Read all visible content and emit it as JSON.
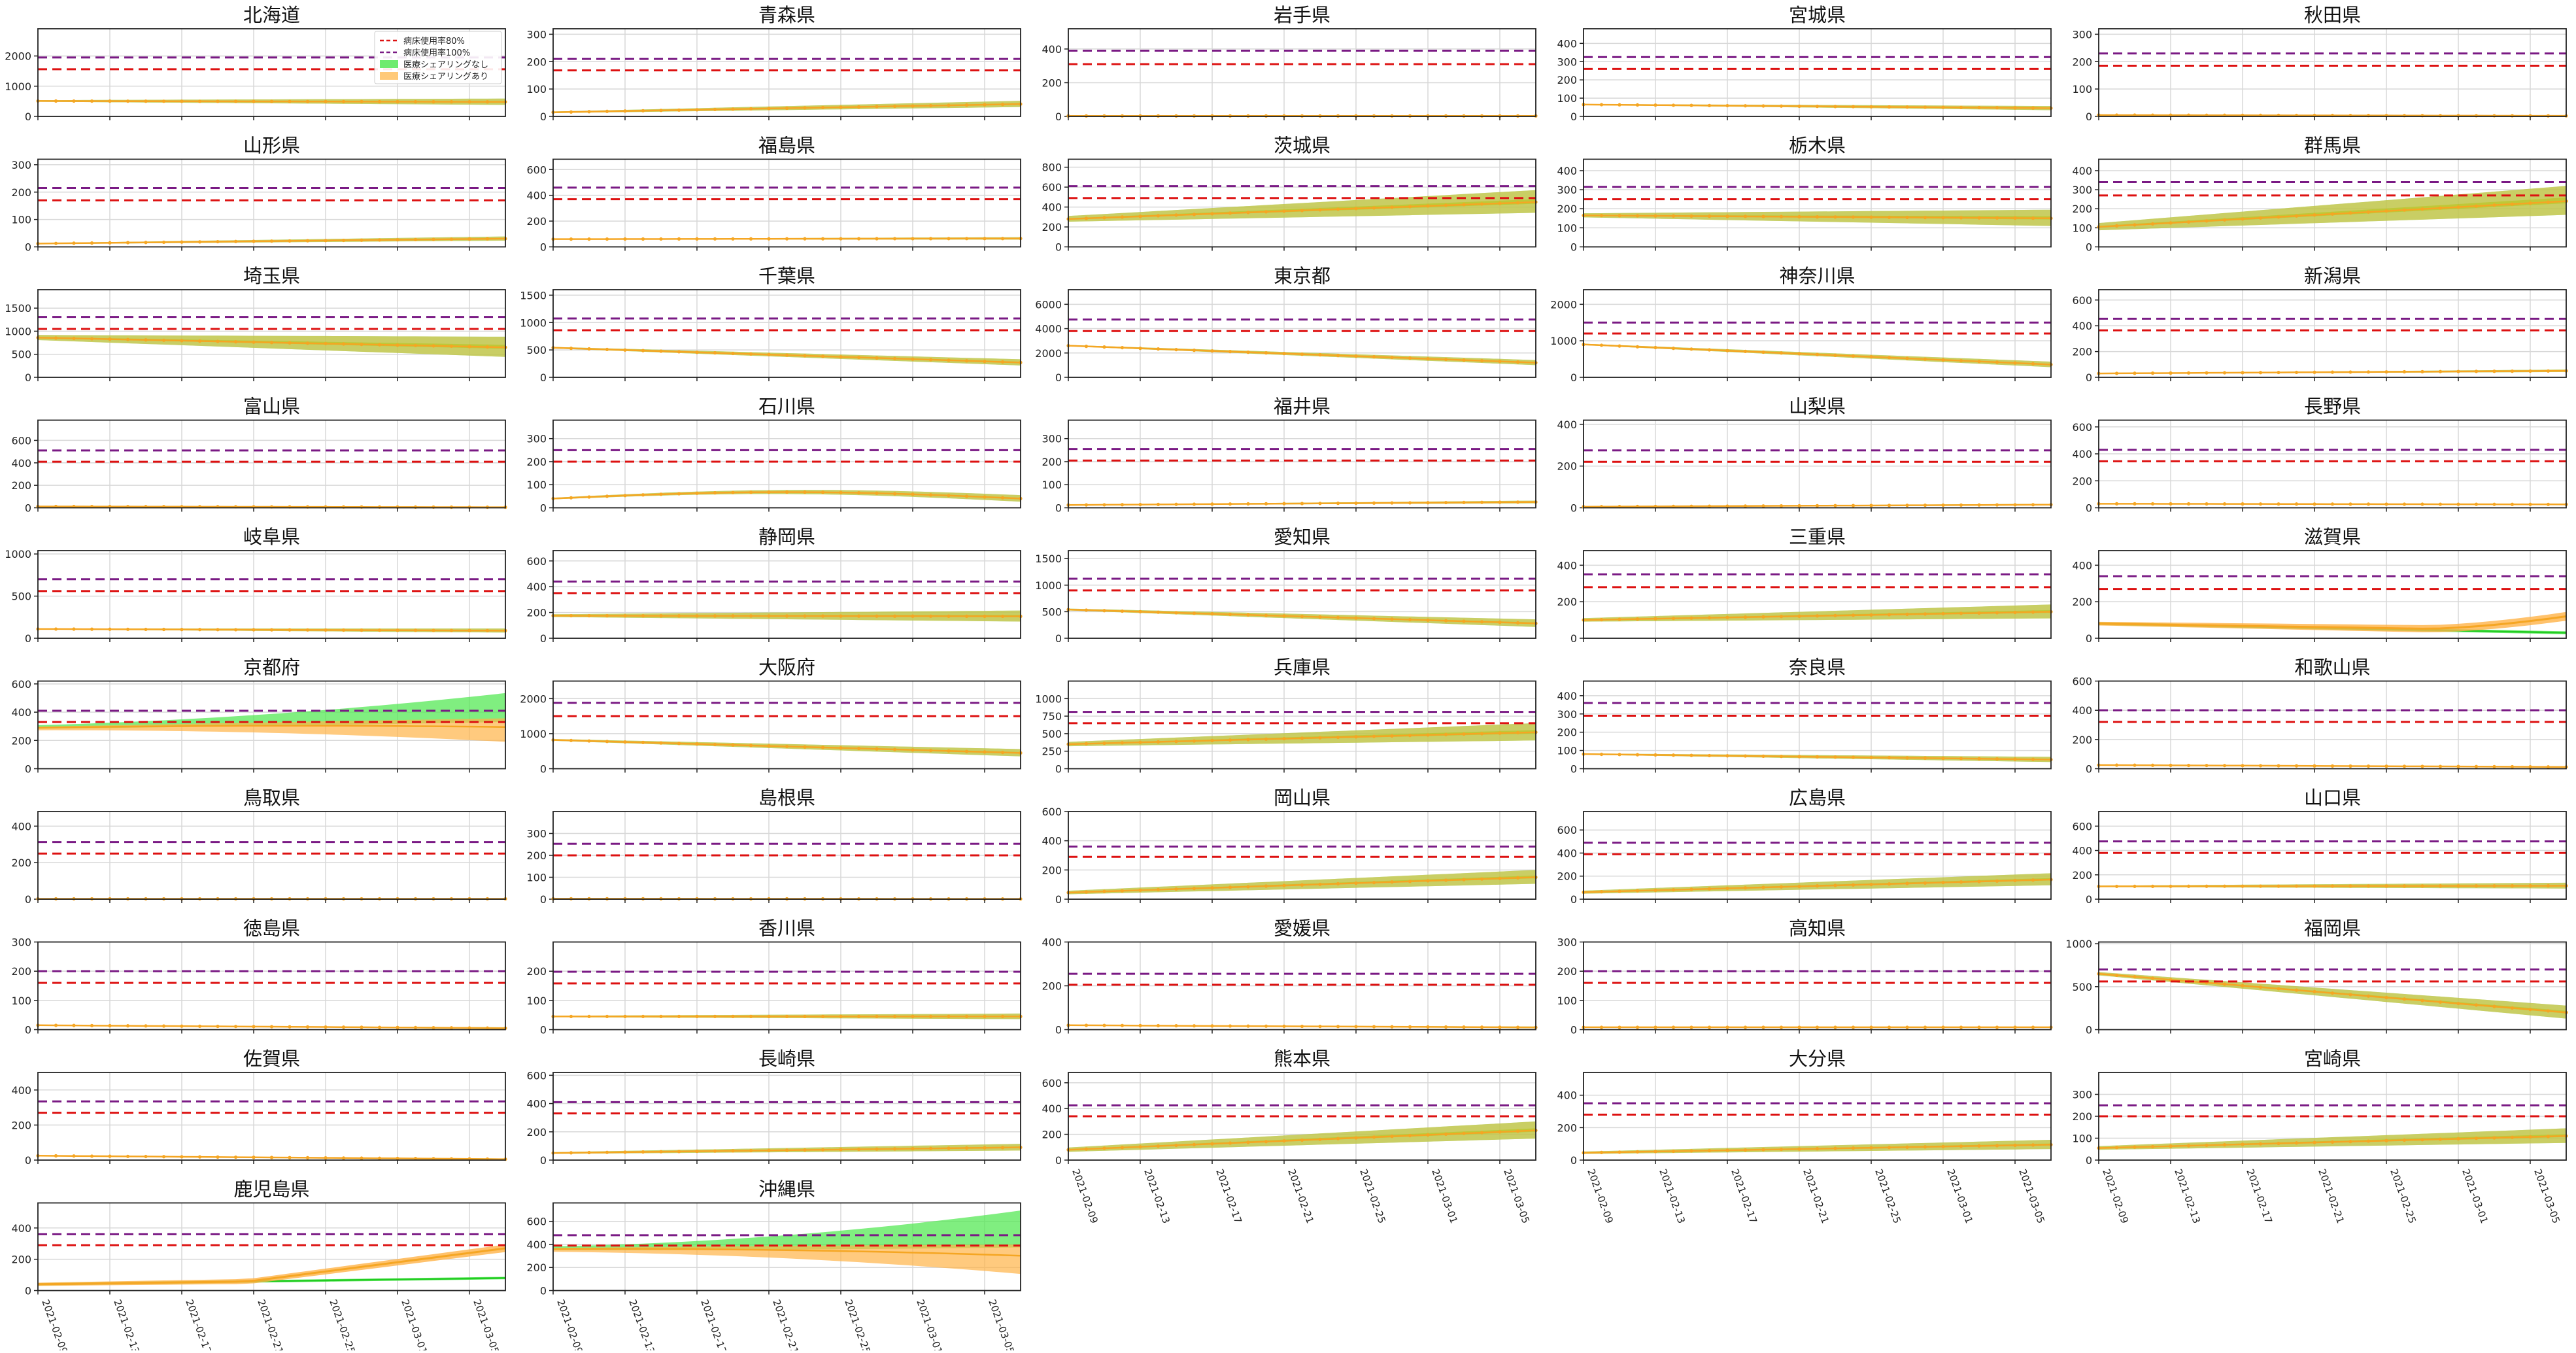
{
  "figure": {
    "legend": {
      "items": [
        {
          "label": "病床使用率80%",
          "color": "#dd1111",
          "style": "dashed"
        },
        {
          "label": "病床使用率100%",
          "color": "#7a1a84",
          "style": "dashed"
        },
        {
          "label": "医療シェアリングなし",
          "color": "#55e855",
          "style": "band"
        },
        {
          "label": "医療シェアリングあり",
          "color": "#ffc060",
          "style": "band"
        }
      ]
    },
    "x_tick_labels": [
      "2021-02-09",
      "2021-02-13",
      "2021-02-17",
      "2021-02-21",
      "2021-02-25",
      "2021-03-01",
      "2021-03-05"
    ],
    "colors": {
      "line80": "#dd1111",
      "line100": "#7a1a84",
      "noShare": "#55e855",
      "share": "#ffb347",
      "shareLine": "#f5a623",
      "overlap": "#b8c41a",
      "grid": "#d8d8d8"
    }
  },
  "chart_data": [
    {
      "type": "line",
      "title": "北海道",
      "ylim": [
        0,
        2900
      ],
      "yticks": [
        0,
        1000,
        2000
      ],
      "cap80": 1560,
      "cap100": 1950,
      "start": 510,
      "end": 480,
      "spread": 110,
      "legend": "top-right"
    },
    {
      "type": "line",
      "title": "青森県",
      "ylim": [
        0,
        320
      ],
      "yticks": [
        0,
        100,
        200,
        300
      ],
      "cap80": 168,
      "cap100": 210,
      "start": 15,
      "end": 45,
      "spread": 12
    },
    {
      "type": "line",
      "title": "岩手県",
      "ylim": [
        0,
        520
      ],
      "yticks": [
        0,
        200,
        400
      ],
      "cap80": 310,
      "cap100": 390,
      "start": 3,
      "end": 3,
      "spread": 2
    },
    {
      "type": "line",
      "title": "宮城県",
      "ylim": [
        0,
        480
      ],
      "yticks": [
        0,
        100,
        200,
        300,
        400
      ],
      "cap80": 260,
      "cap100": 325,
      "start": 65,
      "end": 45,
      "spread": 12
    },
    {
      "type": "line",
      "title": "秋田県",
      "ylim": [
        0,
        320
      ],
      "yticks": [
        0,
        100,
        200,
        300
      ],
      "cap80": 185,
      "cap100": 230,
      "start": 5,
      "end": 2,
      "spread": 2
    },
    {
      "type": "line",
      "title": "山形県",
      "ylim": [
        0,
        320
      ],
      "yticks": [
        0,
        100,
        200,
        300
      ],
      "cap80": 170,
      "cap100": 215,
      "start": 12,
      "end": 30,
      "spread": 8
    },
    {
      "type": "line",
      "title": "福島県",
      "ylim": [
        0,
        680
      ],
      "yticks": [
        0,
        200,
        400,
        600
      ],
      "cap80": 370,
      "cap100": 460,
      "start": 60,
      "end": 65,
      "spread": 10
    },
    {
      "type": "line",
      "title": "茨城県",
      "ylim": [
        0,
        880
      ],
      "yticks": [
        0,
        200,
        400,
        600,
        800
      ],
      "cap80": 490,
      "cap100": 610,
      "start": 280,
      "end": 450,
      "spread": 120
    },
    {
      "type": "line",
      "title": "栃木県",
      "ylim": [
        0,
        460
      ],
      "yticks": [
        0,
        100,
        200,
        300,
        400
      ],
      "cap80": 250,
      "cap100": 315,
      "start": 165,
      "end": 150,
      "spread": 45
    },
    {
      "type": "line",
      "title": "群馬県",
      "ylim": [
        0,
        460
      ],
      "yticks": [
        0,
        100,
        200,
        300,
        400
      ],
      "cap80": 270,
      "cap100": 340,
      "start": 105,
      "end": 240,
      "spread": 80
    },
    {
      "type": "line",
      "title": "埼玉県",
      "ylim": [
        0,
        1900
      ],
      "yticks": [
        0,
        500,
        1000,
        1500
      ],
      "cap80": 1050,
      "cap100": 1310,
      "start": 860,
      "end": 650,
      "spread": 230
    },
    {
      "type": "line",
      "title": "千葉県",
      "ylim": [
        0,
        1600
      ],
      "yticks": [
        0,
        500,
        1000,
        1500
      ],
      "cap80": 860,
      "cap100": 1075,
      "start": 540,
      "end": 270,
      "spread": 60
    },
    {
      "type": "line",
      "title": "東京都",
      "ylim": [
        0,
        7200
      ],
      "yticks": [
        0,
        2000,
        4000,
        6000
      ],
      "cap80": 3800,
      "cap100": 4750,
      "start": 2600,
      "end": 1200,
      "spread": 220
    },
    {
      "type": "line",
      "title": "神奈川県",
      "ylim": [
        0,
        2400
      ],
      "yticks": [
        0,
        1000,
        2000
      ],
      "cap80": 1200,
      "cap100": 1500,
      "start": 900,
      "end": 350,
      "spread": 80
    },
    {
      "type": "line",
      "title": "新潟県",
      "ylim": [
        0,
        680
      ],
      "yticks": [
        0,
        200,
        400,
        600
      ],
      "cap80": 365,
      "cap100": 455,
      "start": 30,
      "end": 50,
      "spread": 10
    },
    {
      "type": "line",
      "title": "富山県",
      "ylim": [
        0,
        780
      ],
      "yticks": [
        0,
        200,
        400,
        600
      ],
      "cap80": 410,
      "cap100": 510,
      "start": 12,
      "end": 5,
      "spread": 3
    },
    {
      "type": "line",
      "title": "石川県",
      "ylim": [
        0,
        380
      ],
      "yticks": [
        0,
        100,
        200,
        300
      ],
      "cap80": 200,
      "cap100": 250,
      "start": 40,
      "end": 40,
      "spread": 15,
      "hump": 28
    },
    {
      "type": "line",
      "title": "福井県",
      "ylim": [
        0,
        380
      ],
      "yticks": [
        0,
        100,
        200,
        300
      ],
      "cap80": 205,
      "cap100": 255,
      "start": 12,
      "end": 25,
      "spread": 6
    },
    {
      "type": "line",
      "title": "山梨県",
      "ylim": [
        0,
        420
      ],
      "yticks": [
        0,
        200,
        400
      ],
      "cap80": 220,
      "cap100": 275,
      "start": 5,
      "end": 15,
      "spread": 4
    },
    {
      "type": "line",
      "title": "長野県",
      "ylim": [
        0,
        650
      ],
      "yticks": [
        0,
        200,
        400,
        600
      ],
      "cap80": 345,
      "cap100": 430,
      "start": 30,
      "end": 25,
      "spread": 6
    },
    {
      "type": "line",
      "title": "岐阜県",
      "ylim": [
        0,
        1040
      ],
      "yticks": [
        0,
        500,
        1000
      ],
      "cap80": 560,
      "cap100": 700,
      "start": 110,
      "end": 90,
      "spread": 25
    },
    {
      "type": "line",
      "title": "静岡県",
      "ylim": [
        0,
        680
      ],
      "yticks": [
        0,
        200,
        400,
        600
      ],
      "cap80": 350,
      "cap100": 440,
      "start": 175,
      "end": 170,
      "spread": 45
    },
    {
      "type": "line",
      "title": "愛知県",
      "ylim": [
        0,
        1650
      ],
      "yticks": [
        0,
        500,
        1000,
        1500
      ],
      "cap80": 900,
      "cap100": 1120,
      "start": 540,
      "end": 280,
      "spread": 75
    },
    {
      "type": "line",
      "title": "三重県",
      "ylim": [
        0,
        480
      ],
      "yticks": [
        0,
        200,
        400
      ],
      "cap80": 280,
      "cap100": 350,
      "start": 100,
      "end": 145,
      "spread": 40
    },
    {
      "type": "line",
      "title": "滋賀県",
      "ylim": [
        0,
        480
      ],
      "yticks": [
        0,
        200,
        400
      ],
      "cap80": 270,
      "cap100": 340,
      "start": 80,
      "end": 120,
      "spread": 15,
      "special": "shiga"
    },
    {
      "type": "line",
      "title": "京都府",
      "ylim": [
        0,
        620
      ],
      "yticks": [
        0,
        200,
        400,
        600
      ],
      "cap80": 330,
      "cap100": 410,
      "start": 290,
      "end": 340,
      "spread": 60,
      "special": "kyoto"
    },
    {
      "type": "line",
      "title": "大阪府",
      "ylim": [
        0,
        2500
      ],
      "yticks": [
        0,
        1000,
        2000
      ],
      "cap80": 1500,
      "cap100": 1880,
      "start": 820,
      "end": 450,
      "spread": 110
    },
    {
      "type": "line",
      "title": "兵庫県",
      "ylim": [
        0,
        1250
      ],
      "yticks": [
        0,
        250,
        500,
        750,
        1000
      ],
      "cap80": 650,
      "cap100": 810,
      "start": 350,
      "end": 520,
      "spread": 130
    },
    {
      "type": "line",
      "title": "奈良県",
      "ylim": [
        0,
        480
      ],
      "yticks": [
        0,
        100,
        200,
        300,
        400
      ],
      "cap80": 290,
      "cap100": 360,
      "start": 80,
      "end": 50,
      "spread": 15
    },
    {
      "type": "line",
      "title": "和歌山県",
      "ylim": [
        0,
        600
      ],
      "yticks": [
        0,
        200,
        400,
        600
      ],
      "cap80": 320,
      "cap100": 400,
      "start": 25,
      "end": 12,
      "spread": 5
    },
    {
      "type": "line",
      "title": "鳥取県",
      "ylim": [
        0,
        480
      ],
      "yticks": [
        0,
        200,
        400
      ],
      "cap80": 250,
      "cap100": 313,
      "start": 2,
      "end": 2,
      "spread": 2
    },
    {
      "type": "line",
      "title": "島根県",
      "ylim": [
        0,
        400
      ],
      "yticks": [
        0,
        100,
        200,
        300
      ],
      "cap80": 200,
      "cap100": 253,
      "start": 2,
      "end": 1,
      "spread": 1
    },
    {
      "type": "line",
      "title": "岡山県",
      "ylim": [
        0,
        600
      ],
      "yticks": [
        0,
        200,
        400,
        600
      ],
      "cap80": 290,
      "cap100": 360,
      "start": 45,
      "end": 150,
      "spread": 50
    },
    {
      "type": "line",
      "title": "広島県",
      "ylim": [
        0,
        760
      ],
      "yticks": [
        0,
        200,
        400,
        600
      ],
      "cap80": 390,
      "cap100": 490,
      "start": 60,
      "end": 170,
      "spread": 55
    },
    {
      "type": "line",
      "title": "山口県",
      "ylim": [
        0,
        720
      ],
      "yticks": [
        0,
        200,
        400,
        600
      ],
      "cap80": 380,
      "cap100": 475,
      "start": 105,
      "end": 110,
      "spread": 25
    },
    {
      "type": "line",
      "title": "徳島県",
      "ylim": [
        0,
        300
      ],
      "yticks": [
        0,
        100,
        200,
        300
      ],
      "cap80": 160,
      "cap100": 200,
      "start": 15,
      "end": 5,
      "spread": 3
    },
    {
      "type": "line",
      "title": "香川県",
      "ylim": [
        0,
        300
      ],
      "yticks": [
        0,
        100,
        200
      ],
      "cap80": 158,
      "cap100": 198,
      "start": 45,
      "end": 45,
      "spread": 10
    },
    {
      "type": "line",
      "title": "愛媛県",
      "ylim": [
        0,
        400
      ],
      "yticks": [
        0,
        200,
        400
      ],
      "cap80": 205,
      "cap100": 255,
      "start": 20,
      "end": 10,
      "spread": 4
    },
    {
      "type": "line",
      "title": "高知県",
      "ylim": [
        0,
        300
      ],
      "yticks": [
        0,
        100,
        200,
        300
      ],
      "cap80": 160,
      "cap100": 200,
      "start": 8,
      "end": 8,
      "spread": 2
    },
    {
      "type": "line",
      "title": "福岡県",
      "ylim": [
        0,
        1020
      ],
      "yticks": [
        0,
        500,
        1000
      ],
      "cap80": 560,
      "cap100": 700,
      "start": 650,
      "end": 200,
      "spread": 80
    },
    {
      "type": "line",
      "title": "佐賀県",
      "ylim": [
        0,
        500
      ],
      "yticks": [
        0,
        200,
        400
      ],
      "cap80": 270,
      "cap100": 335,
      "start": 25,
      "end": 5,
      "spread": 4
    },
    {
      "type": "line",
      "title": "長崎県",
      "ylim": [
        0,
        620
      ],
      "yticks": [
        0,
        200,
        400,
        600
      ],
      "cap80": 330,
      "cap100": 410,
      "start": 50,
      "end": 90,
      "spread": 25
    },
    {
      "type": "line",
      "title": "熊本県",
      "ylim": [
        0,
        680
      ],
      "yticks": [
        0,
        200,
        400,
        600
      ],
      "cap80": 340,
      "cap100": 425,
      "start": 80,
      "end": 230,
      "spread": 70
    },
    {
      "type": "line",
      "title": "大分県",
      "ylim": [
        0,
        540
      ],
      "yticks": [
        0,
        200,
        400
      ],
      "cap80": 280,
      "cap100": 350,
      "start": 45,
      "end": 95,
      "spread": 30
    },
    {
      "type": "line",
      "title": "宮崎県",
      "ylim": [
        0,
        400
      ],
      "yticks": [
        0,
        100,
        200,
        300
      ],
      "cap80": 200,
      "cap100": 250,
      "start": 55,
      "end": 110,
      "spread": 35
    },
    {
      "type": "line",
      "title": "鹿児島県",
      "ylim": [
        0,
        560
      ],
      "yticks": [
        0,
        200,
        400
      ],
      "cap80": 290,
      "cap100": 360,
      "start": 40,
      "end": 270,
      "spread": 35,
      "special": "kagoshima"
    },
    {
      "type": "line",
      "title": "沖縄県",
      "ylim": [
        0,
        760
      ],
      "yticks": [
        0,
        200,
        400,
        600
      ],
      "cap80": 390,
      "cap100": 480,
      "start": 360,
      "end": 380,
      "spread": 80,
      "special": "okinawa"
    }
  ]
}
